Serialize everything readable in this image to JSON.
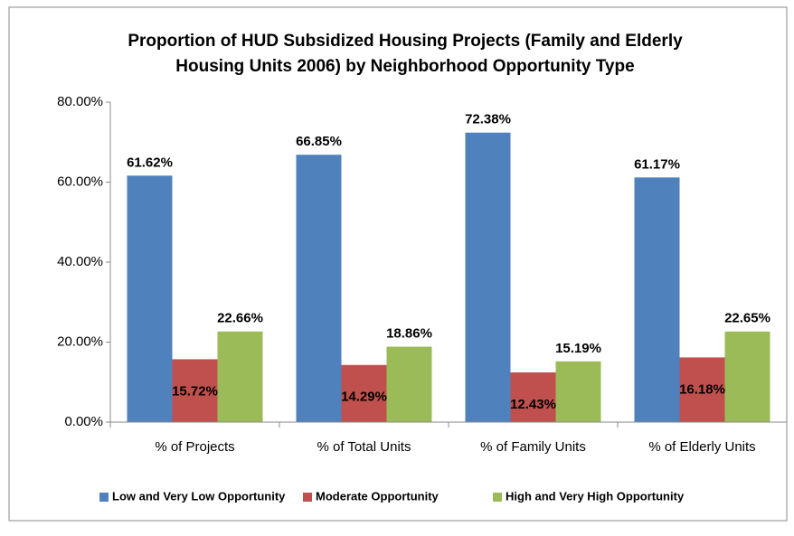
{
  "chart_data": {
    "type": "bar",
    "title": [
      "Proportion of HUD Subsidized Housing Projects (Family and Elderly",
      "Housing Units 2006) by Neighborhood Opportunity Type"
    ],
    "categories": [
      "% of Projects",
      "% of Total Units",
      "% of Family Units",
      "% of Elderly Units"
    ],
    "series": [
      {
        "name": "Low and Very Low Opportunity",
        "color": "#4f81bd",
        "values": [
          61.62,
          66.85,
          72.38,
          61.17
        ],
        "value_labels": [
          "61.62%",
          "66.85%",
          "72.38%",
          "61.17%"
        ]
      },
      {
        "name": "Moderate Opportunity",
        "color": "#c0504d",
        "values": [
          15.72,
          14.29,
          12.43,
          16.18
        ],
        "value_labels": [
          "15.72%",
          "14.29%",
          "12.43%",
          "16.18%"
        ]
      },
      {
        "name": "High and Very High Opportunity",
        "color": "#9bbb59",
        "values": [
          22.66,
          18.86,
          15.19,
          22.65
        ],
        "value_labels": [
          "22.66%",
          "18.86%",
          "15.19%",
          "22.65%"
        ]
      }
    ],
    "ylim": [
      0,
      80
    ],
    "yticks": [
      {
        "value": 0,
        "label": "0.00%"
      },
      {
        "value": 20,
        "label": "20.00%"
      },
      {
        "value": 40,
        "label": "40.00%"
      },
      {
        "value": 60,
        "label": "60.00%"
      },
      {
        "value": 80,
        "label": "80.00%"
      }
    ],
    "legend": "bottom"
  }
}
